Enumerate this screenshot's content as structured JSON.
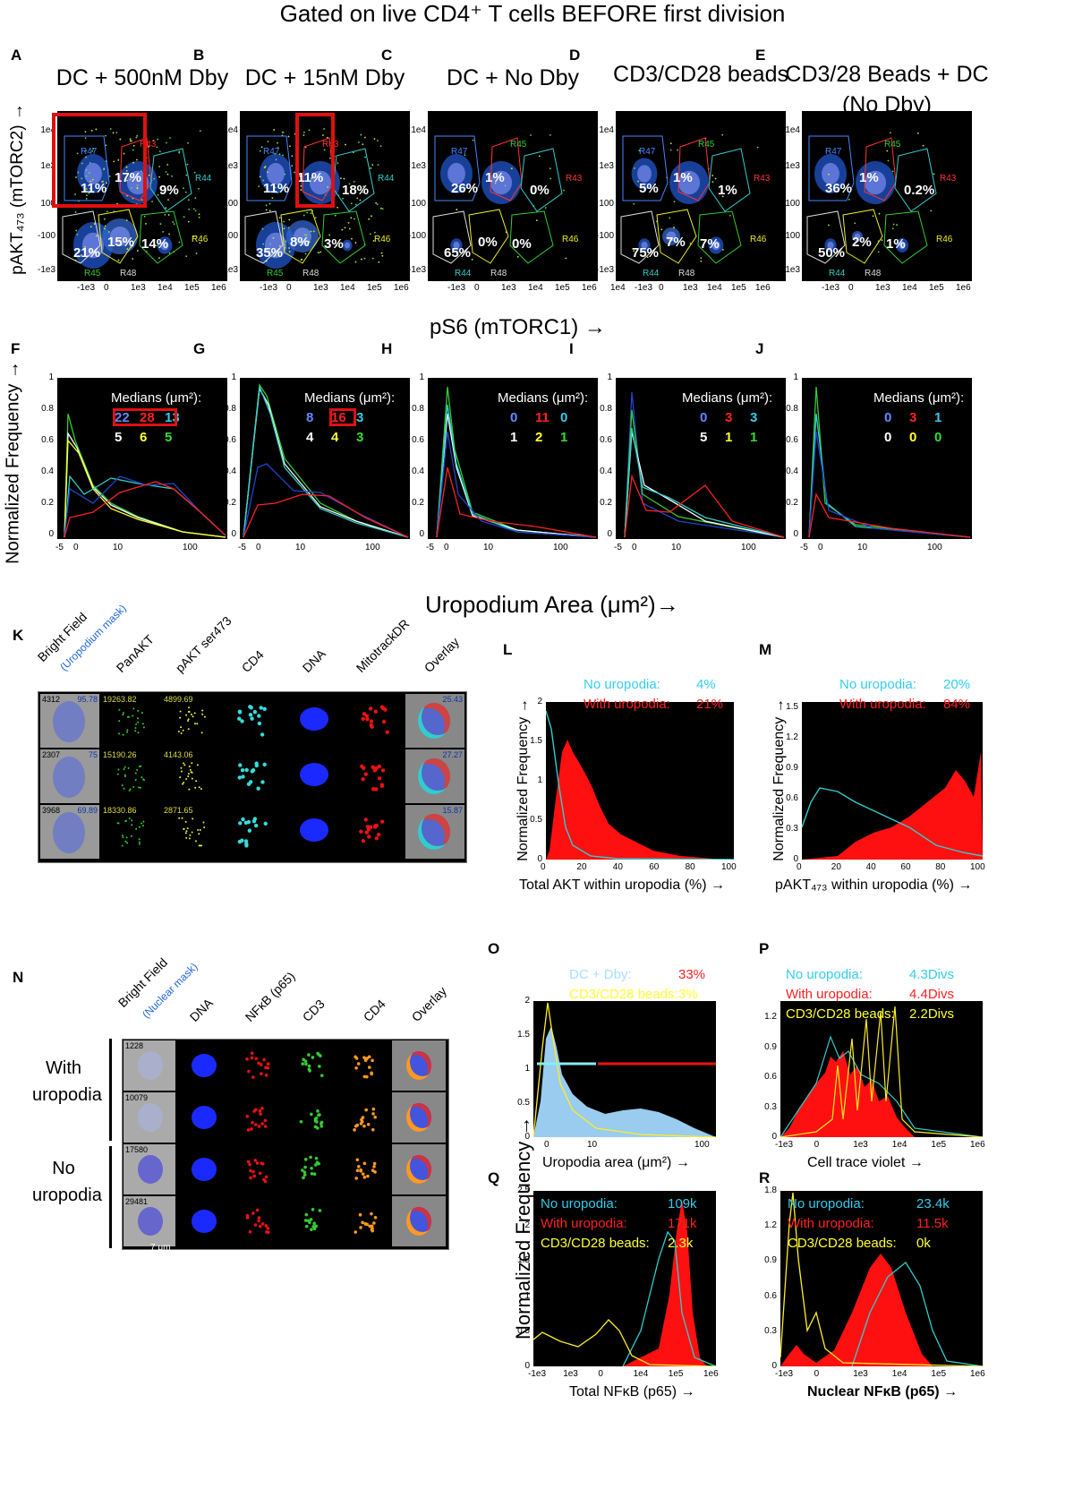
{
  "figure_title": "Gated on live CD4⁺ T cells BEFORE first division",
  "row1": {
    "y_axis_label": "pAKT₄₇₃ (mTORC2) →",
    "x_axis_label": "pS6 (mTORC1) →",
    "y_ticks": [
      "1e4",
      "1e3",
      "100",
      "-100",
      "-1e3"
    ],
    "x_ticks": [
      "-1e3",
      "0",
      "1e3",
      "1e4",
      "1e5",
      "1e6"
    ],
    "x_ticks_D": [
      "1e4",
      "-1e3",
      "0",
      "1e3",
      "1e4",
      "1e5",
      "1e6"
    ],
    "panels": [
      {
        "letter": "A",
        "title": "DC + 500nM Dby",
        "percents": [
          "11%",
          "17%",
          "9%",
          "21%",
          "15%",
          "14%"
        ],
        "regions": [
          "R47",
          "R43",
          "R44",
          "R45",
          "R48",
          "R46"
        ]
      },
      {
        "letter": "B",
        "title": "DC + 15nM Dby",
        "percents": [
          "11%",
          "11%",
          "18%",
          "35%",
          "8%",
          "3%"
        ],
        "regions": [
          "R47",
          "R43",
          "R44",
          "R45",
          "R48",
          "R46"
        ]
      },
      {
        "letter": "C",
        "title": "DC + No Dby",
        "percents": [
          "26%",
          "1%",
          "0%",
          "65%",
          "0%",
          "0%"
        ],
        "regions": [
          "R47",
          "R45",
          "R43",
          "R44",
          "R48",
          "R46"
        ]
      },
      {
        "letter": "D",
        "title": "CD3/CD28 beads",
        "percents": [
          "5%",
          "1%",
          "1%",
          "75%",
          "7%",
          "7%"
        ],
        "regions": [
          "R47",
          "R45",
          "R43",
          "R44",
          "R48",
          "R46"
        ]
      },
      {
        "letter": "E",
        "title": "CD3/28 Beads + DC (No Dby)",
        "percents": [
          "36%",
          "1%",
          "0.2%",
          "50%",
          "2%",
          "1%"
        ],
        "regions": [
          "R47",
          "R45",
          "R43",
          "R44",
          "R48",
          "R46"
        ]
      }
    ]
  },
  "row2": {
    "y_axis_label": "Normalized Frequency →",
    "x_axis_label": "Uropodium Area (μm²)→",
    "y_ticks": [
      "1",
      "0.8",
      "0.6",
      "0.4",
      "0.2",
      "0"
    ],
    "x_ticks": [
      "-5",
      "0",
      "10",
      "100"
    ],
    "medians_label": "Medians (μm²):",
    "panels": [
      {
        "letter": "F",
        "top": [
          "22",
          "28",
          "13"
        ],
        "bottom": [
          "5",
          "6",
          "5"
        ]
      },
      {
        "letter": "G",
        "top": [
          "8",
          "16",
          "3"
        ],
        "bottom": [
          "4",
          "4",
          "3"
        ]
      },
      {
        "letter": "H",
        "top": [
          "0",
          "11",
          "0"
        ],
        "bottom": [
          "1",
          "2",
          "1"
        ]
      },
      {
        "letter": "I",
        "top": [
          "0",
          "3",
          "3"
        ],
        "bottom": [
          "5",
          "1",
          "1"
        ]
      },
      {
        "letter": "J",
        "top": [
          "0",
          "3",
          "1"
        ],
        "bottom": [
          "0",
          "0",
          "0"
        ]
      }
    ]
  },
  "panelK": {
    "letter": "K",
    "channels": [
      "Bright Field",
      "PanAKT",
      "pAKT ser473",
      "CD4",
      "DNA",
      "MitotrackDR",
      "Overlay"
    ],
    "mask_label": "(Uropodium mask)",
    "rows": [
      {
        "id": "4312",
        "mask": "95.78",
        "panakt": "19263.82",
        "pakt": "4899.69",
        "overlay": "25.43"
      },
      {
        "id": "2307",
        "mask": "75",
        "panakt": "15190.26",
        "pakt": "4143.06",
        "overlay": "27.27"
      },
      {
        "id": "3968",
        "mask": "69.89",
        "panakt": "18330.86",
        "pakt": "2871.65",
        "overlay": "15.87"
      }
    ]
  },
  "panelL": {
    "letter": "L",
    "ylabel": "Normalized Frequency →",
    "xlabel": "Total AKT within uropodia (%) →",
    "legend": [
      {
        "label": "No uropodia:",
        "value": "4%",
        "color": "#33ccee"
      },
      {
        "label": "With uropodia:",
        "value": "21%",
        "color": "#ff2020"
      }
    ],
    "y_ticks": [
      "2",
      "1.5",
      "1",
      "0.5",
      "0"
    ],
    "x_ticks": [
      "0",
      "20",
      "40",
      "60",
      "80",
      "100"
    ]
  },
  "panelM": {
    "letter": "M",
    "ylabel": "Normalized Frequency →",
    "xlabel": "pAKT₄₇₃ within uropodia (%) →",
    "legend": [
      {
        "label": "No uropodia:",
        "value": "20%",
        "color": "#33ccee"
      },
      {
        "label": "With uropodia:",
        "value": "84%",
        "color": "#ff2020"
      }
    ],
    "y_ticks": [
      "1.5",
      "1.2",
      "0.9",
      "0.6",
      "0.3",
      "0"
    ],
    "x_ticks": [
      "0",
      "20",
      "40",
      "60",
      "80",
      "100"
    ]
  },
  "panelN": {
    "letter": "N",
    "channels": [
      "Bright Field",
      "DNA",
      "NFκB (p65)",
      "CD3",
      "CD4",
      "Overlay"
    ],
    "mask_label": "(Nuclear mask)",
    "group1": "With uropodia",
    "group2": "No uropodia",
    "ids": [
      "1228",
      "10079",
      "17580",
      "29481"
    ],
    "scale": "7 μm"
  },
  "shared_y_label": "Normalized Frequency →",
  "panelO": {
    "letter": "O",
    "xlabel": "Uropodia area (μm²) →",
    "legend": [
      {
        "label": "DC + Dby:",
        "value": "33%",
        "color": "#aaddff",
        "vcolor": "#ff2020"
      },
      {
        "label": "CD3/CD28 beads:",
        "value": "3%",
        "color": "#ffff33",
        "vcolor": "#ffff33"
      }
    ],
    "y_ticks": [
      "2",
      "1.5",
      "1",
      "0.5",
      "0"
    ],
    "x_ticks": [
      "0",
      "10",
      "100"
    ]
  },
  "panelP": {
    "letter": "P",
    "xlabel": "Cell trace violet →",
    "legend": [
      {
        "label": "No  uropodia:",
        "value": "4.3Divs",
        "color": "#33ccee"
      },
      {
        "label": "With uropodia:",
        "value": "4.4Divs",
        "color": "#ff2020"
      },
      {
        "label": "CD3/CD28 beads:",
        "value": "2.2Divs",
        "color": "#ffff33"
      }
    ],
    "y_ticks": [
      "1.2",
      "0.9",
      "0.6",
      "0.3",
      "0"
    ],
    "x_ticks": [
      "-1e3",
      "0",
      "1e3",
      "1e4",
      "1e5",
      "1e6"
    ]
  },
  "panelQ": {
    "letter": "Q",
    "xlabel": "Total NFκB (p65) →",
    "legend": [
      {
        "label": "No  uropodia:",
        "value": "109k",
        "color": "#33ccee"
      },
      {
        "label": "With uropodia:",
        "value": "171k",
        "color": "#ff2020"
      },
      {
        "label": "CD3/CD28 beads:",
        "value": "2.3k",
        "color": "#ffff33"
      }
    ],
    "y_ticks": [
      "2.5",
      "2",
      "1.5",
      "1",
      "0.5",
      "0"
    ],
    "x_ticks": [
      "-1e3",
      "1e3",
      "0",
      "1e4",
      "1e5",
      "1e6"
    ]
  },
  "panelR": {
    "letter": "R",
    "xlabel": "Nuclear NFκB (p65) →",
    "legend": [
      {
        "label": "No  uropodia:",
        "value": "23.4k",
        "color": "#33ccee"
      },
      {
        "label": "With uropodia:",
        "value": "11.5k",
        "color": "#ff2020"
      },
      {
        "label": "CD3/CD28 beads:",
        "value": "0k",
        "color": "#ffff33"
      }
    ],
    "y_ticks": [
      "1.8",
      "1.2",
      "0.9",
      "0.6",
      "0.3",
      "0"
    ],
    "x_ticks": [
      "-1e3",
      "0",
      "1e3",
      "1e4",
      "1e5",
      "1e6"
    ]
  }
}
